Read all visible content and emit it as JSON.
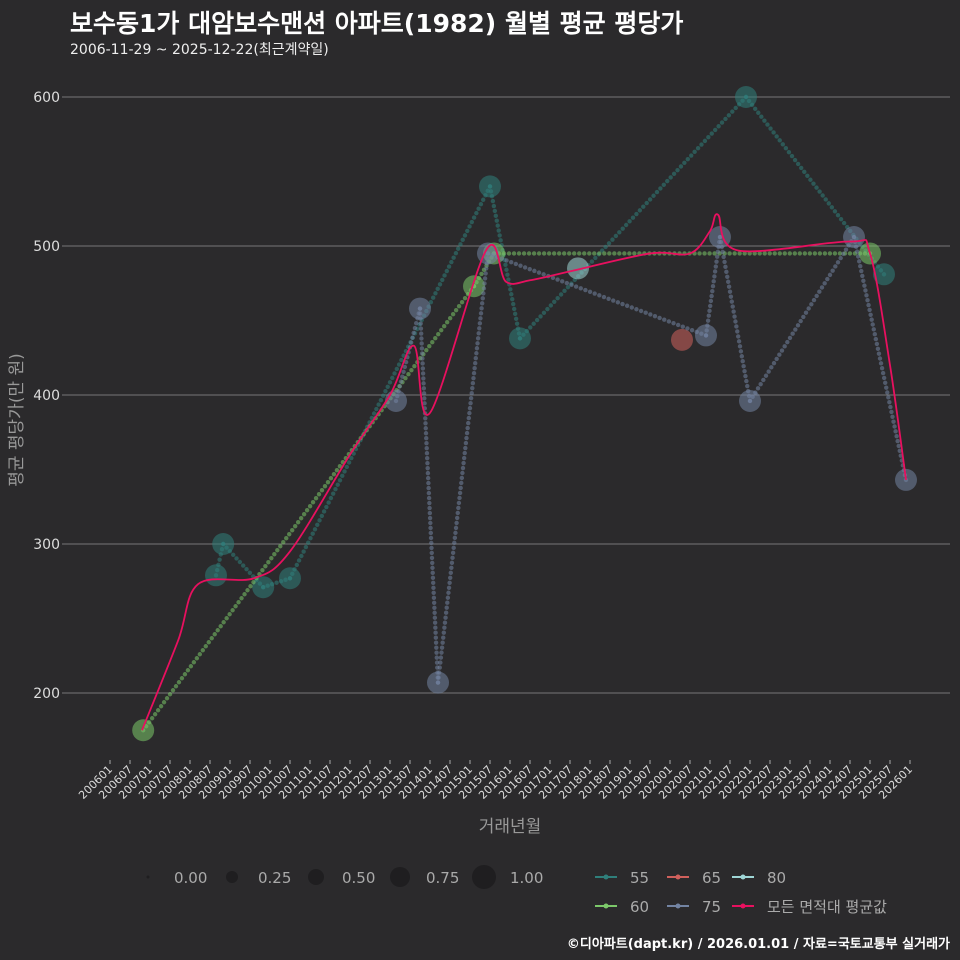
{
  "title": "보수동1가 대암보수맨션 아파트(1982) 월별 평균 평당가",
  "subtitle": "2006-11-29 ~ 2025-12-22(최근계약일)",
  "caption": "©디아파트(dapt.kr) / 2026.01.01 / 자료=국토교통부 실거래가",
  "chart_data": {
    "type": "scatter",
    "xlabel": "거래년월",
    "ylabel": "평균 평당가(만 원)",
    "ylim": [
      155,
      615
    ],
    "xlim": [
      2005.6,
      2026.6
    ],
    "yticks": [
      200,
      300,
      400,
      500,
      600
    ],
    "xticks": [
      "200601",
      "200607",
      "200701",
      "200707",
      "200801",
      "200807",
      "200901",
      "200907",
      "201001",
      "201007",
      "201101",
      "201107",
      "201201",
      "201207",
      "201301",
      "201307",
      "201401",
      "201407",
      "201501",
      "201507",
      "201601",
      "201607",
      "201701",
      "201707",
      "201801",
      "201807",
      "201901",
      "201907",
      "202001",
      "202007",
      "202101",
      "202107",
      "202201",
      "202207",
      "202301",
      "202307",
      "202401",
      "202407",
      "202501",
      "202507",
      "202601"
    ],
    "size_legend": [
      "0.00",
      "0.25",
      "0.50",
      "0.75",
      "1.00"
    ],
    "series": [
      {
        "name": "55",
        "color": "#2f7f7b",
        "points": [
          [
            2008.65,
            279
          ],
          [
            2008.83,
            300
          ],
          [
            2009.83,
            271
          ],
          [
            2010.5,
            277
          ],
          [
            2015.5,
            540
          ],
          [
            2016.25,
            438
          ],
          [
            2021.9,
            600
          ],
          [
            2025.35,
            481
          ]
        ]
      },
      {
        "name": "60",
        "color": "#7cc86a",
        "points": [
          [
            2006.83,
            175
          ],
          [
            2015.1,
            473
          ],
          [
            2015.6,
            495
          ],
          [
            2025.0,
            495
          ]
        ]
      },
      {
        "name": "65",
        "color": "#d0605c",
        "points": [
          [
            2020.3,
            437
          ]
        ]
      },
      {
        "name": "75",
        "color": "#7384a3",
        "points": [
          [
            2013.15,
            396
          ],
          [
            2013.75,
            458
          ],
          [
            2014.2,
            207
          ],
          [
            2015.45,
            495
          ],
          [
            2020.9,
            440
          ],
          [
            2021.25,
            506
          ],
          [
            2022.0,
            396
          ],
          [
            2024.6,
            506
          ],
          [
            2025.9,
            343
          ]
        ]
      },
      {
        "name": "80",
        "color": "#9fd6d6",
        "points": [
          [
            2017.7,
            485
          ]
        ]
      },
      {
        "name": "모든 면적대 평균값",
        "color": "#e8105f",
        "points": [
          [
            2006.8,
            175
          ],
          [
            2007.7,
            235
          ],
          [
            2008.2,
            273
          ],
          [
            2009.6,
            277
          ],
          [
            2010.5,
            295
          ],
          [
            2012,
            360
          ],
          [
            2013,
            400
          ],
          [
            2013.6,
            433
          ],
          [
            2014.0,
            388
          ],
          [
            2015.4,
            497
          ],
          [
            2015.9,
            476
          ],
          [
            2016.5,
            477
          ],
          [
            2017.5,
            483
          ],
          [
            2019.5,
            495
          ],
          [
            2020.5,
            495
          ],
          [
            2021,
            510
          ],
          [
            2021.2,
            521
          ],
          [
            2021.7,
            497
          ],
          [
            2024.5,
            503
          ],
          [
            2025.0,
            495
          ],
          [
            2025.5,
            420
          ],
          [
            2025.9,
            343
          ]
        ]
      }
    ]
  }
}
